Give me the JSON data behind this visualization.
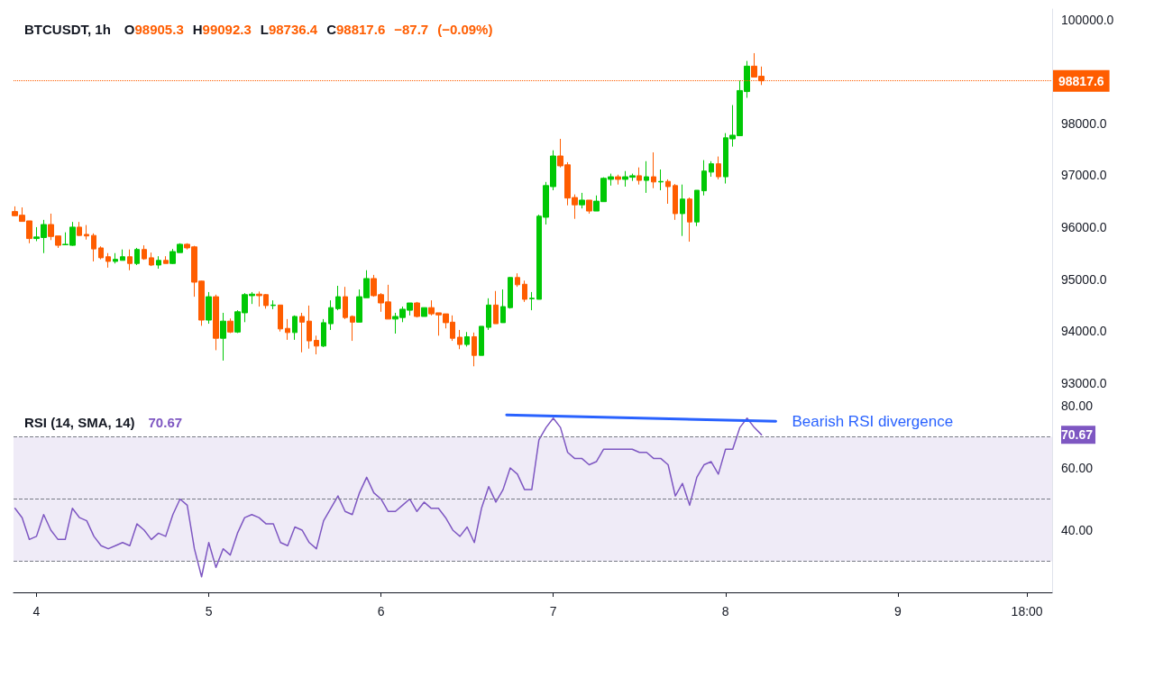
{
  "chart_data": [
    {
      "type": "candlestick",
      "title": "BTCUSDT, 1h",
      "subtitle": "O98905.3 H99092.3 L98736.4 C98817.6 −87.7 (−0.09%)",
      "x": [
        "--12-03T21:00",
        "--12-03T22:00",
        "--12-03T23:00",
        "--12-04T00:00",
        "--12-04T01:00",
        "--12-04T02:00",
        "--12-04T03:00",
        "--12-04T04:00",
        "--12-04T05:00",
        "--12-04T06:00",
        "--12-04T07:00",
        "--12-04T08:00",
        "--12-04T09:00",
        "--12-04T10:00",
        "--12-04T11:00",
        "--12-04T12:00",
        "--12-04T13:00",
        "--12-04T14:00",
        "--12-04T15:00",
        "--12-04T16:00",
        "--12-04T17:00",
        "--12-04T18:00",
        "--12-04T19:00",
        "--12-04T20:00",
        "--12-04T21:00",
        "--12-04T22:00",
        "--12-04T23:00",
        "--12-05T00:00",
        "--12-05T01:00",
        "--12-05T02:00",
        "--12-05T03:00",
        "--12-05T04:00",
        "--12-05T05:00",
        "--12-05T06:00",
        "--12-05T07:00",
        "--12-05T08:00",
        "--12-05T09:00",
        "--12-05T10:00",
        "--12-05T11:00",
        "--12-05T12:00",
        "--12-05T13:00",
        "--12-05T14:00",
        "--12-05T15:00",
        "--12-05T16:00",
        "--12-05T17:00",
        "--12-05T18:00",
        "--12-05T19:00",
        "--12-05T20:00",
        "--12-05T21:00",
        "--12-05T22:00",
        "--12-05T23:00",
        "--12-06T00:00",
        "--12-06T01:00",
        "--12-06T02:00",
        "--12-06T03:00",
        "--12-06T04:00",
        "--12-06T05:00",
        "--12-06T06:00",
        "--12-06T07:00",
        "--12-06T08:00",
        "--12-06T09:00",
        "--12-06T10:00",
        "--12-06T11:00",
        "--12-06T12:00",
        "--12-06T13:00",
        "--12-06T14:00",
        "--12-06T15:00",
        "--12-06T16:00",
        "--12-06T17:00",
        "--12-06T18:00",
        "--12-06T19:00",
        "--12-06T20:00",
        "--12-06T21:00",
        "--12-06T22:00",
        "--12-06T23:00",
        "--12-07T00:00",
        "--12-07T01:00",
        "--12-07T02:00",
        "--12-07T03:00",
        "--12-07T04:00",
        "--12-07T05:00",
        "--12-07T06:00",
        "--12-07T07:00",
        "--12-07T08:00",
        "--12-07T09:00",
        "--12-07T10:00",
        "--12-07T11:00",
        "--12-07T12:00",
        "--12-07T13:00",
        "--12-07T14:00",
        "--12-07T15:00",
        "--12-07T16:00",
        "--12-07T17:00",
        "--12-07T18:00",
        "--12-07T19:00",
        "--12-07T20:00",
        "--12-07T21:00",
        "--12-07T22:00",
        "--12-07T23:00",
        "--12-08T00:00",
        "--12-08T01:00",
        "--12-08T02:00",
        "--12-08T03:00",
        "--12-08T04:00",
        "--12-08T05:00"
      ],
      "ohlc": [
        [
          96300,
          96400,
          96210,
          96220
        ],
        [
          96230,
          96380,
          96110,
          96110
        ],
        [
          96120,
          96120,
          95690,
          95780
        ],
        [
          95780,
          96000,
          95730,
          95810
        ],
        [
          95800,
          96140,
          95500,
          96050
        ],
        [
          96050,
          96260,
          95750,
          95820
        ],
        [
          95830,
          95830,
          95600,
          95650
        ],
        [
          95660,
          95900,
          95660,
          95670
        ],
        [
          95650,
          96100,
          95640,
          96000
        ],
        [
          96000,
          96100,
          95830,
          95840
        ],
        [
          95860,
          96040,
          95760,
          95830
        ],
        [
          95840,
          95880,
          95340,
          95580
        ],
        [
          95600,
          95630,
          95380,
          95410
        ],
        [
          95430,
          95500,
          95220,
          95340
        ],
        [
          95340,
          95500,
          95300,
          95380
        ],
        [
          95360,
          95570,
          95360,
          95430
        ],
        [
          95430,
          95570,
          95170,
          95300
        ],
        [
          95300,
          95600,
          95270,
          95570
        ],
        [
          95570,
          95650,
          95370,
          95390
        ],
        [
          95410,
          95510,
          95250,
          95270
        ],
        [
          95270,
          95440,
          95200,
          95360
        ],
        [
          95360,
          95440,
          95300,
          95300
        ],
        [
          95300,
          95580,
          95290,
          95530
        ],
        [
          95510,
          95690,
          95510,
          95670
        ],
        [
          95670,
          95690,
          95570,
          95600
        ],
        [
          95620,
          95640,
          94660,
          94940
        ],
        [
          94960,
          94970,
          94100,
          94210
        ],
        [
          94210,
          94750,
          94140,
          94660
        ],
        [
          94660,
          94700,
          93630,
          93860
        ],
        [
          93860,
          94350,
          93430,
          94190
        ],
        [
          94190,
          94240,
          93960,
          93980
        ],
        [
          93980,
          94400,
          93960,
          94370
        ],
        [
          94350,
          94730,
          94170,
          94700
        ],
        [
          94680,
          94750,
          94520,
          94710
        ],
        [
          94710,
          94760,
          94470,
          94680
        ],
        [
          94700,
          94710,
          94430,
          94490
        ],
        [
          94490,
          94590,
          94420,
          94500
        ],
        [
          94500,
          94500,
          93990,
          94040
        ],
        [
          94050,
          94230,
          93830,
          93970
        ],
        [
          93970,
          94300,
          93830,
          94280
        ],
        [
          94280,
          94350,
          93590,
          94170
        ],
        [
          94190,
          94490,
          93660,
          93810
        ],
        [
          93820,
          93910,
          93550,
          93710
        ],
        [
          93710,
          94230,
          93690,
          94160
        ],
        [
          94140,
          94590,
          94020,
          94450
        ],
        [
          94430,
          94870,
          94400,
          94660
        ],
        [
          94660,
          94850,
          94230,
          94260
        ],
        [
          94280,
          94300,
          93810,
          94170
        ],
        [
          94170,
          94800,
          94170,
          94660
        ],
        [
          94640,
          95170,
          94640,
          95010
        ],
        [
          95010,
          95080,
          94660,
          94680
        ],
        [
          94700,
          94730,
          94370,
          94540
        ],
        [
          94560,
          94890,
          94230,
          94230
        ],
        [
          94230,
          94350,
          93950,
          94280
        ],
        [
          94260,
          94470,
          94170,
          94420
        ],
        [
          94400,
          94540,
          94300,
          94540
        ],
        [
          94540,
          94560,
          94260,
          94280
        ],
        [
          94280,
          94450,
          94280,
          94450
        ],
        [
          94450,
          94590,
          94300,
          94330
        ],
        [
          94350,
          94350,
          93910,
          94310
        ],
        [
          94330,
          94330,
          94050,
          94160
        ],
        [
          94170,
          94300,
          93810,
          93860
        ],
        [
          93880,
          94020,
          93650,
          93740
        ],
        [
          93740,
          93980,
          93700,
          93890
        ],
        [
          93890,
          93970,
          93320,
          93530
        ],
        [
          93530,
          94090,
          93530,
          94090
        ],
        [
          94070,
          94630,
          94020,
          94500
        ],
        [
          94500,
          94770,
          94140,
          94140
        ],
        [
          94160,
          94800,
          94160,
          94470
        ],
        [
          94450,
          95040,
          94430,
          95030
        ],
        [
          95030,
          95110,
          94850,
          94890
        ],
        [
          94900,
          94970,
          94560,
          94610
        ],
        [
          94620,
          94750,
          94400,
          94630
        ],
        [
          94610,
          96240,
          94610,
          96210
        ],
        [
          96190,
          96870,
          96050,
          96800
        ],
        [
          96780,
          97480,
          96710,
          97370
        ],
        [
          97370,
          97700,
          97150,
          97180
        ],
        [
          97200,
          97250,
          96420,
          96560
        ],
        [
          96570,
          96630,
          96160,
          96430
        ],
        [
          96430,
          96660,
          96360,
          96520
        ],
        [
          96520,
          96520,
          96260,
          96310
        ],
        [
          96310,
          96610,
          96310,
          96500
        ],
        [
          96490,
          96960,
          96490,
          96940
        ],
        [
          96920,
          97030,
          96800,
          96970
        ],
        [
          96970,
          97010,
          96820,
          96920
        ],
        [
          96920,
          97080,
          96780,
          96970
        ],
        [
          96960,
          97030,
          96890,
          96990
        ],
        [
          96990,
          97150,
          96820,
          96900
        ],
        [
          96900,
          97270,
          96660,
          96970
        ],
        [
          96970,
          97440,
          96750,
          96870
        ],
        [
          96870,
          97110,
          96710,
          96880
        ],
        [
          96880,
          96920,
          96450,
          96780
        ],
        [
          96800,
          96830,
          96140,
          96260
        ],
        [
          96260,
          96820,
          95830,
          96540
        ],
        [
          96540,
          96570,
          95720,
          96100
        ],
        [
          96100,
          96710,
          96020,
          96710
        ],
        [
          96700,
          97290,
          96610,
          97080
        ],
        [
          97060,
          97270,
          96970,
          97220
        ],
        [
          97220,
          97360,
          96920,
          96970
        ],
        [
          96970,
          97810,
          96840,
          97720
        ],
        [
          97700,
          98350,
          97550,
          97770
        ],
        [
          97760,
          98820,
          97760,
          98630
        ],
        [
          98610,
          99200,
          98490,
          99100
        ],
        [
          99100,
          99350,
          98890,
          98890
        ],
        [
          98905.3,
          99092.3,
          98736.4,
          98817.6
        ]
      ],
      "xlim": [
        "--12-03T20:48",
        "--12-09T21:30"
      ],
      "ylim": [
        92700,
        100200
      ],
      "yticks": [
        {
          "value": 93000,
          "label": "93000.0"
        },
        {
          "value": 94000,
          "label": "94000.0"
        },
        {
          "value": 95000,
          "label": "95000.0"
        },
        {
          "value": 96000,
          "label": "96000.0"
        },
        {
          "value": 97000,
          "label": "97000.0"
        },
        {
          "value": 98000,
          "label": "98000.0"
        },
        {
          "value": 100000,
          "label": "100000.0"
        }
      ],
      "tick_labels": "y",
      "ref_lines": [
        {
          "axis": "y",
          "value": 98817.6,
          "label": "98817.6",
          "color": "#ff5d00",
          "line_style": "dotted"
        }
      ]
    },
    {
      "type": "line",
      "title": "RSI (14, SMA, 14)",
      "subtitle": "70.67",
      "x": [
        "--12-03T21:00",
        "--12-03T22:00",
        "--12-03T23:00",
        "--12-04T00:00",
        "--12-04T01:00",
        "--12-04T02:00",
        "--12-04T03:00",
        "--12-04T04:00",
        "--12-04T05:00",
        "--12-04T06:00",
        "--12-04T07:00",
        "--12-04T08:00",
        "--12-04T09:00",
        "--12-04T10:00",
        "--12-04T11:00",
        "--12-04T12:00",
        "--12-04T13:00",
        "--12-04T14:00",
        "--12-04T15:00",
        "--12-04T16:00",
        "--12-04T17:00",
        "--12-04T18:00",
        "--12-04T19:00",
        "--12-04T20:00",
        "--12-04T21:00",
        "--12-04T22:00",
        "--12-04T23:00",
        "--12-05T00:00",
        "--12-05T01:00",
        "--12-05T02:00",
        "--12-05T03:00",
        "--12-05T04:00",
        "--12-05T05:00",
        "--12-05T06:00",
        "--12-05T07:00",
        "--12-05T08:00",
        "--12-05T09:00",
        "--12-05T10:00",
        "--12-05T11:00",
        "--12-05T12:00",
        "--12-05T13:00",
        "--12-05T14:00",
        "--12-05T15:00",
        "--12-05T16:00",
        "--12-05T17:00",
        "--12-05T18:00",
        "--12-05T19:00",
        "--12-05T20:00",
        "--12-05T21:00",
        "--12-05T22:00",
        "--12-05T23:00",
        "--12-06T00:00",
        "--12-06T01:00",
        "--12-06T02:00",
        "--12-06T03:00",
        "--12-06T04:00",
        "--12-06T05:00",
        "--12-06T06:00",
        "--12-06T07:00",
        "--12-06T08:00",
        "--12-06T09:00",
        "--12-06T10:00",
        "--12-06T11:00",
        "--12-06T12:00",
        "--12-06T13:00",
        "--12-06T14:00",
        "--12-06T15:00",
        "--12-06T16:00",
        "--12-06T17:00",
        "--12-06T18:00",
        "--12-06T19:00",
        "--12-06T20:00",
        "--12-06T21:00",
        "--12-06T22:00",
        "--12-06T23:00",
        "--12-07T00:00",
        "--12-07T01:00",
        "--12-07T02:00",
        "--12-07T03:00",
        "--12-07T04:00",
        "--12-07T05:00",
        "--12-07T06:00",
        "--12-07T07:00",
        "--12-07T08:00",
        "--12-07T09:00",
        "--12-07T10:00",
        "--12-07T11:00",
        "--12-07T12:00",
        "--12-07T13:00",
        "--12-07T14:00",
        "--12-07T15:00",
        "--12-07T16:00",
        "--12-07T17:00",
        "--12-07T18:00",
        "--12-07T19:00",
        "--12-07T20:00",
        "--12-07T21:00",
        "--12-07T22:00",
        "--12-07T23:00",
        "--12-08T00:00",
        "--12-08T01:00",
        "--12-08T02:00",
        "--12-08T03:00",
        "--12-08T04:00",
        "--12-08T05:00"
      ],
      "series": [
        {
          "color": "#7e57c2",
          "values": [
            47,
            44,
            37,
            38,
            45,
            40,
            37,
            37,
            47,
            44,
            43,
            38,
            35,
            34,
            35,
            36,
            35,
            42,
            40,
            37,
            39,
            38,
            45,
            50,
            48,
            34,
            25,
            36,
            28,
            34,
            32,
            39,
            44,
            45,
            44,
            42,
            42,
            36,
            35,
            41,
            40,
            36,
            34,
            43,
            47,
            51,
            46,
            45,
            52,
            57,
            52,
            50,
            46,
            46,
            48,
            50,
            46,
            49,
            47,
            47,
            44,
            40,
            38,
            41,
            36,
            47,
            54,
            49,
            53,
            60,
            58,
            53,
            53,
            69,
            73,
            76,
            73,
            65,
            63,
            63,
            61,
            62,
            66,
            66,
            66,
            66,
            66,
            65,
            65,
            63,
            63,
            61,
            51,
            55,
            48,
            57,
            61,
            62,
            58,
            66,
            66,
            73,
            76,
            73,
            70.67
          ]
        },
        {
          "type": "line",
          "color": "#2962ff",
          "x": [
            "--12-06T17:30",
            "--12-08T07:00"
          ],
          "values": [
            77,
            75
          ]
        }
      ],
      "annotations": [
        {
          "text": "Bearish RSI divergence",
          "x": "--12-08T07:00",
          "y": 75
        }
      ],
      "xlim": [
        "--12-03T20:48",
        "--12-09T21:30"
      ],
      "xticks": [
        {
          "value": "--12-04T00:00",
          "label": "4"
        },
        {
          "value": "--12-05T00:00",
          "label": "5"
        },
        {
          "value": "--12-06T00:00",
          "label": "6"
        },
        {
          "value": "--12-07T00:00",
          "label": "7"
        },
        {
          "value": "--12-08T00:00",
          "label": "8"
        },
        {
          "value": "--12-09T00:00",
          "label": "9"
        },
        {
          "value": "--12-09T18:00",
          "label": "18:00"
        }
      ],
      "ylim": [
        20,
        82.3
      ],
      "yticks": [
        {
          "value": 40,
          "label": "40.00"
        },
        {
          "value": 60,
          "label": "60.00"
        },
        {
          "value": 70.67,
          "label": "70.67"
        },
        {
          "value": 80,
          "label": "80.00"
        }
      ],
      "bands": [
        {
          "axis": "y",
          "from": 30,
          "to": 70,
          "color": "#efebf7"
        }
      ],
      "ref_lines": [
        {
          "axis": "y",
          "value": 70,
          "color": "#787b86",
          "line_style": "dashed"
        },
        {
          "axis": "y",
          "value": 50,
          "color": "#787b86",
          "line_style": "dashed"
        },
        {
          "axis": "y",
          "value": 30,
          "color": "#787b86",
          "line_style": "dashed"
        }
      ]
    }
  ]
}
